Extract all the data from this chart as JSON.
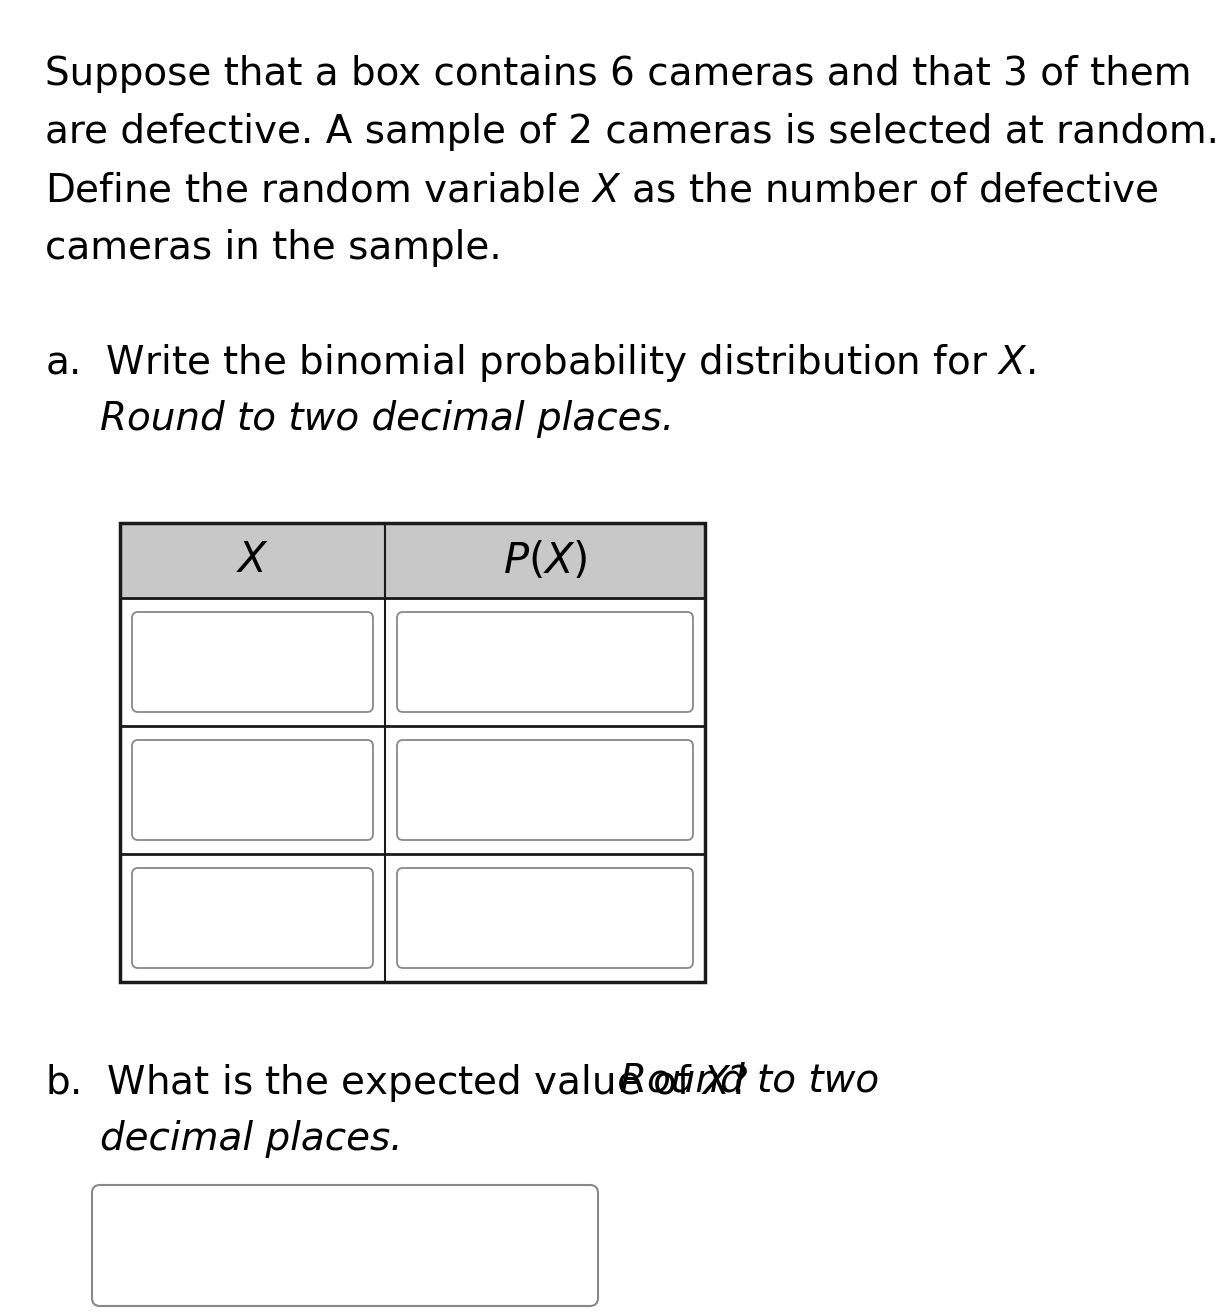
{
  "background_color": "#ffffff",
  "text_color": "#000000",
  "header_bg_color": "#c8c8c8",
  "cell_bg_color": "#ffffff",
  "cell_border_color": "#888888",
  "table_border_color": "#1a1a1a",
  "paragraph_lines": [
    "Suppose that a box contains 6 cameras and that 3 of them",
    "are defective. A sample of 2 cameras is selected at random.",
    "Define the random variable $X$ as the number of defective",
    "cameras in the sample."
  ],
  "part_a_line1_normal": "a.  Write the binomial probability distribution for ",
  "part_a_line1_italic_X": "X",
  "part_a_line1_end": ".",
  "part_a_line2": "Round to two decimal places.",
  "header_X": "$X$",
  "header_PX": "$P(X)$",
  "num_data_rows": 3,
  "part_b_line1_normal": "b.  What is the expected value of ",
  "part_b_line1_X": "X",
  "part_b_line1_italic": "? Round to two",
  "part_b_line2_italic": "decimal places.",
  "font_size_paragraph": 28,
  "font_size_header": 30
}
